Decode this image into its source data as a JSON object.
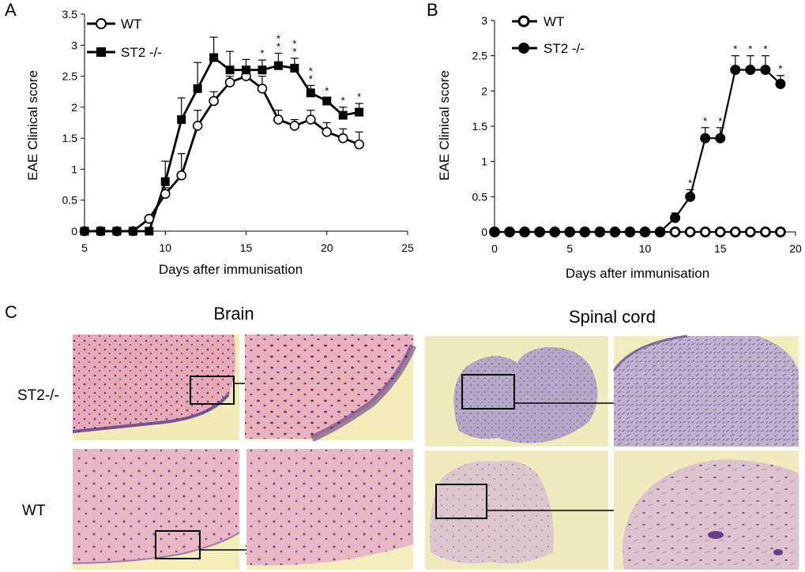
{
  "panels": {
    "a": "A",
    "b": "B",
    "c": "C"
  },
  "chart_data": [
    {
      "type": "line",
      "panel": "A",
      "xlabel": "Days after immunisation",
      "ylabel": "EAE Clinical score",
      "xlim": [
        5,
        25
      ],
      "ylim": [
        0,
        3.5
      ],
      "xticks": [
        "5",
        "10",
        "15",
        "20",
        "25"
      ],
      "yticks": [
        "0",
        "0.5",
        "1",
        "1.5",
        "2",
        "2.5",
        "3",
        "3.5"
      ],
      "legend_position": "top-left",
      "series": [
        {
          "name": "WT",
          "marker": "open-circle",
          "x": [
            5,
            6,
            7,
            8,
            9,
            10,
            11,
            12,
            13,
            14,
            15,
            16,
            17,
            18,
            19,
            20,
            21,
            22
          ],
          "values": [
            0,
            0,
            0,
            0,
            0.2,
            0.6,
            0.9,
            1.7,
            2.1,
            2.4,
            2.5,
            2.3,
            1.8,
            1.7,
            1.8,
            1.6,
            1.5,
            1.4
          ],
          "error": [
            0,
            0,
            0,
            0,
            0,
            0.1,
            0.35,
            0.25,
            0.15,
            0.1,
            0.1,
            0.2,
            0.15,
            0.1,
            0.15,
            0.15,
            0.15,
            0.2
          ]
        },
        {
          "name": "ST2 -/-",
          "marker": "filled-square",
          "x": [
            5,
            6,
            7,
            8,
            9,
            10,
            11,
            12,
            13,
            14,
            15,
            16,
            17,
            18,
            19,
            20,
            21,
            22
          ],
          "values": [
            0,
            0,
            0,
            0,
            0,
            0.8,
            1.8,
            2.3,
            2.8,
            2.6,
            2.6,
            2.6,
            2.67,
            2.63,
            2.23,
            2.1,
            1.87,
            1.92
          ],
          "error": [
            0,
            0,
            0,
            0,
            0,
            0.33,
            0.35,
            0.42,
            0.33,
            0.3,
            0.17,
            0.16,
            0.2,
            0.16,
            0.12,
            0.06,
            0.13,
            0.14
          ]
        }
      ],
      "annotations": [
        {
          "x": 16,
          "text": "*"
        },
        {
          "x": 17,
          "text": "**"
        },
        {
          "x": 18,
          "text": "**"
        },
        {
          "x": 19,
          "text": "**"
        },
        {
          "x": 20,
          "text": "*"
        },
        {
          "x": 21,
          "text": "*"
        },
        {
          "x": 22,
          "text": "*"
        }
      ]
    },
    {
      "type": "line",
      "panel": "B",
      "xlabel": "Days after immunisation",
      "ylabel": "EAE Clinical score",
      "xlim": [
        0,
        20
      ],
      "ylim": [
        0,
        3
      ],
      "xticks": [
        "0",
        "5",
        "10",
        "15",
        "20"
      ],
      "yticks": [
        "0",
        "0.5",
        "1",
        "1.5",
        "2",
        "2.5",
        "3"
      ],
      "legend_position": "top-left",
      "series": [
        {
          "name": "WT",
          "marker": "open-circle",
          "x": [
            0,
            1,
            2,
            3,
            4,
            5,
            6,
            7,
            8,
            9,
            10,
            11,
            12,
            13,
            14,
            15,
            16,
            17,
            18,
            19
          ],
          "values": [
            0,
            0,
            0,
            0,
            0,
            0,
            0,
            0,
            0,
            0,
            0,
            0,
            0,
            0,
            0,
            0,
            0,
            0,
            0,
            0
          ],
          "error": [
            0,
            0,
            0,
            0,
            0,
            0,
            0,
            0,
            0,
            0,
            0,
            0,
            0,
            0,
            0,
            0,
            0,
            0,
            0,
            0
          ]
        },
        {
          "name": "ST2 -/-",
          "marker": "filled-circle",
          "x": [
            0,
            1,
            2,
            3,
            4,
            5,
            6,
            7,
            8,
            9,
            10,
            11,
            12,
            13,
            14,
            15,
            16,
            17,
            18,
            19
          ],
          "values": [
            0,
            0,
            0,
            0,
            0,
            0,
            0,
            0,
            0,
            0,
            0,
            0,
            0.2,
            0.5,
            1.33,
            1.33,
            2.3,
            2.3,
            2.3,
            2.1
          ],
          "error": [
            0,
            0,
            0,
            0,
            0,
            0,
            0,
            0,
            0,
            0,
            0,
            0,
            0.07,
            0.1,
            0.15,
            0.15,
            0.2,
            0.2,
            0.2,
            0.12
          ]
        }
      ],
      "annotations": [
        {
          "x": 13,
          "text": "*"
        },
        {
          "x": 14,
          "text": "*"
        },
        {
          "x": 15,
          "text": "*"
        },
        {
          "x": 16,
          "text": "*"
        },
        {
          "x": 17,
          "text": "*"
        },
        {
          "x": 18,
          "text": "*"
        },
        {
          "x": 19,
          "text": "*"
        }
      ]
    }
  ],
  "histology": {
    "columns": [
      "Brain",
      "Spinal cord"
    ],
    "rows": [
      "ST2-/-",
      "WT"
    ],
    "colors": {
      "brain_tissue": "#e7a7b4",
      "brain_background": "#f3ebb7",
      "spinal_tissue": "#b5a6c6",
      "spinal_background": "#f1eab9",
      "nuclei": "#5a3b86"
    }
  }
}
